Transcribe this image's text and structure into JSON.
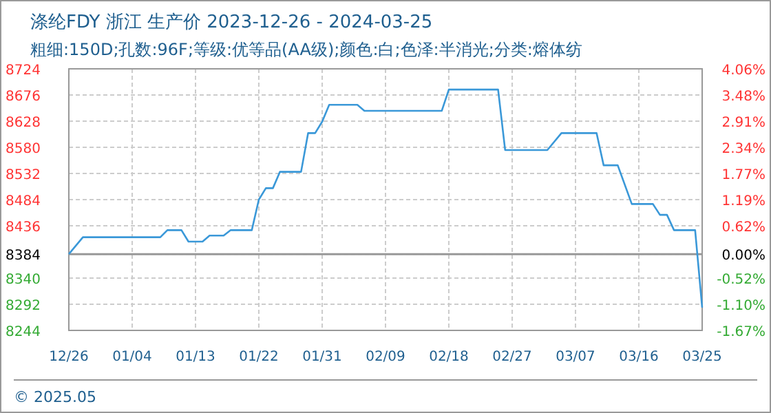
{
  "chart_data": {
    "type": "line",
    "title": "涤纶FDY 浙江 生产价 2023-12-26 - 2024-03-25",
    "subtitle": "粗细:150D;孔数:96F;等级:优等品(AA级);颜色:白;色泽:半消光;分类:熔体纺",
    "x": [
      "2023-12-26",
      "2023-12-28",
      "2024-01-08",
      "2024-01-09",
      "2024-01-11",
      "2024-01-12",
      "2024-01-14",
      "2024-01-15",
      "2024-01-17",
      "2024-01-18",
      "2024-01-21",
      "2024-01-22",
      "2024-01-23",
      "2024-01-24",
      "2024-01-25",
      "2024-01-28",
      "2024-01-29",
      "2024-01-30",
      "2024-01-31",
      "2024-02-01",
      "2024-02-05",
      "2024-02-06",
      "2024-02-17",
      "2024-02-18",
      "2024-02-25",
      "2024-02-26",
      "2024-03-03",
      "2024-03-05",
      "2024-03-10",
      "2024-03-11",
      "2024-03-13",
      "2024-03-15",
      "2024-03-18",
      "2024-03-19",
      "2024-03-20",
      "2024-03-21",
      "2024-03-24",
      "2024-03-25"
    ],
    "series": [
      {
        "color": "#3a98d8",
        "values": [
          8384,
          8415,
          8415,
          8428,
          8428,
          8407,
          8407,
          8418,
          8418,
          8428,
          8428,
          8484,
          8505,
          8505,
          8535,
          8535,
          8606,
          8606,
          8627,
          8658,
          8658,
          8647,
          8647,
          8686,
          8686,
          8575,
          8575,
          8606,
          8606,
          8547,
          8547,
          8476,
          8476,
          8456,
          8456,
          8428,
          8428,
          8286
        ]
      }
    ],
    "xlim": [
      "2023-12-26",
      "2024-03-25"
    ],
    "xticks": [
      {
        "value": "2023-12-26",
        "label": "12/26"
      },
      {
        "value": "2024-01-04",
        "label": "01/04"
      },
      {
        "value": "2024-01-13",
        "label": "01/13"
      },
      {
        "value": "2024-01-22",
        "label": "01/22"
      },
      {
        "value": "2024-01-31",
        "label": "01/31"
      },
      {
        "value": "2024-02-09",
        "label": "02/09"
      },
      {
        "value": "2024-02-18",
        "label": "02/18"
      },
      {
        "value": "2024-02-27",
        "label": "02/27"
      },
      {
        "value": "2024-03-07",
        "label": "03/07"
      },
      {
        "value": "2024-03-16",
        "label": "03/16"
      },
      {
        "value": "2024-03-25",
        "label": "03/25"
      }
    ],
    "ylim": [
      8244,
      8724
    ],
    "yticks": [
      8244,
      8292,
      8340,
      8384,
      8436,
      8484,
      8532,
      8580,
      8628,
      8676,
      8724
    ],
    "y2lim": [
      -1.67,
      4.06
    ],
    "y2ticks": [
      {
        "value": -1.67,
        "label": "-1.67%"
      },
      {
        "value": -1.1,
        "label": "-1.10%"
      },
      {
        "value": -0.52,
        "label": "-0.52%"
      },
      {
        "value": 0,
        "label": "0.00%"
      },
      {
        "value": 0.62,
        "label": "0.62%"
      },
      {
        "value": 1.19,
        "label": "1.19%"
      },
      {
        "value": 1.77,
        "label": "1.77%"
      },
      {
        "value": 2.34,
        "label": "2.34%"
      },
      {
        "value": 2.91,
        "label": "2.91%"
      },
      {
        "value": 3.48,
        "label": "3.48%"
      },
      {
        "value": 4.06,
        "label": "4.06%"
      }
    ],
    "ref_lines": [
      {
        "axis": "y",
        "value": 8384,
        "color": "#999999"
      }
    ],
    "grid": true,
    "annotations": [
      "© 2025.05"
    ]
  }
}
